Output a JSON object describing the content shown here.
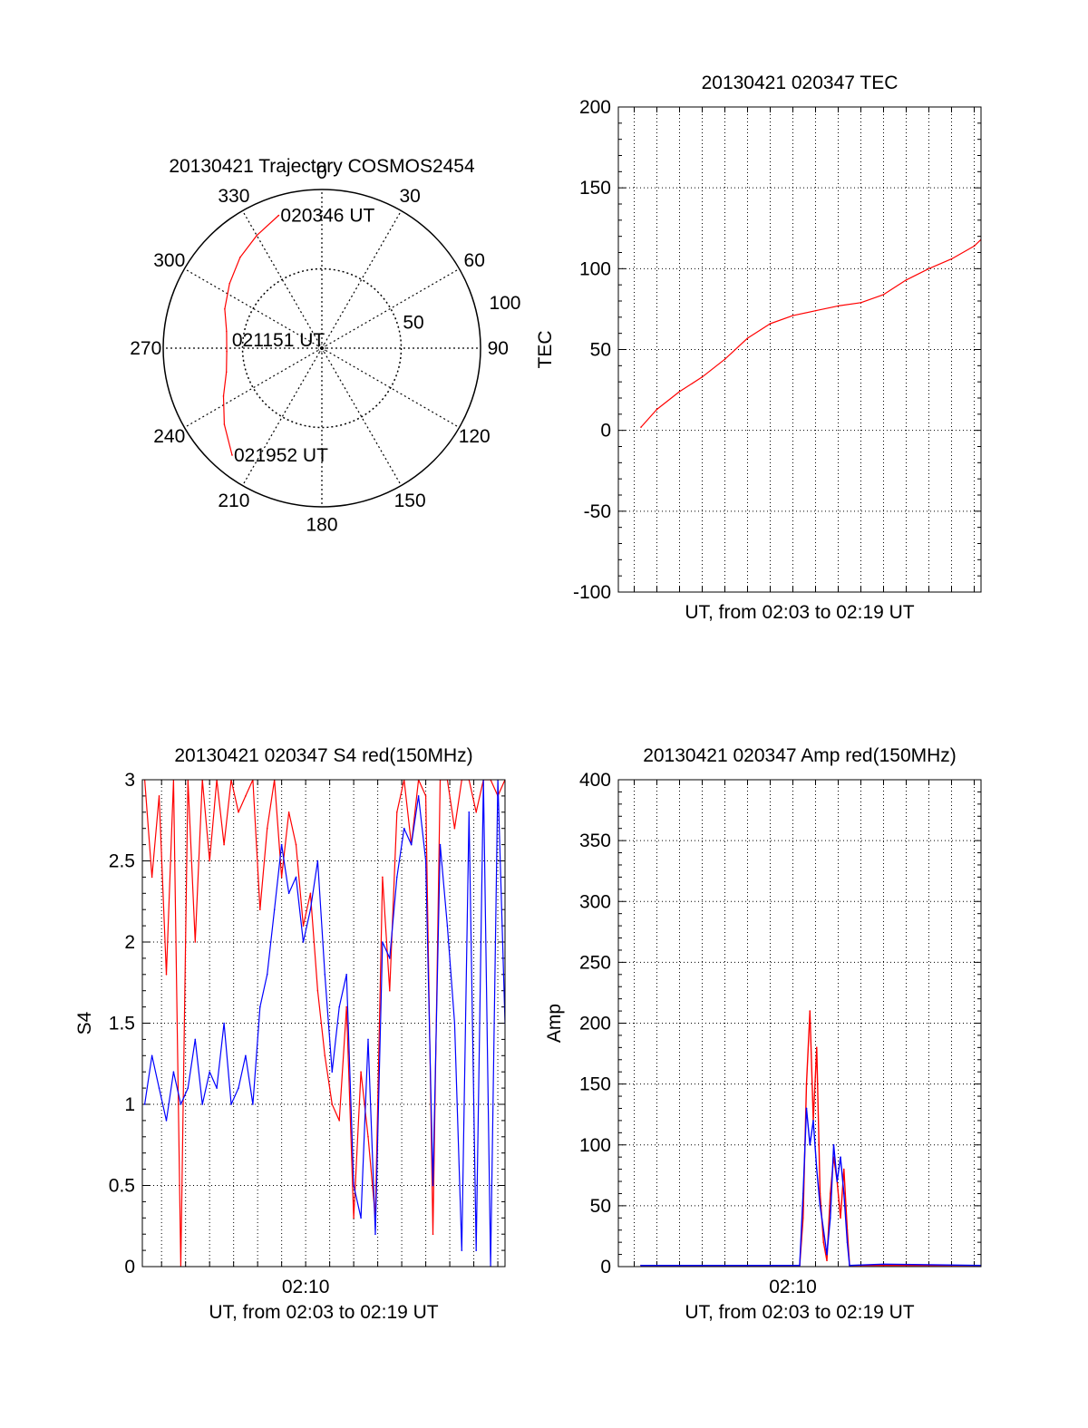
{
  "colors": {
    "series_red": "#ff0000",
    "series_blue": "#0000ff",
    "axis": "#000000",
    "grid": "#000000"
  },
  "chart_data": [
    {
      "id": "trajectory",
      "type": "polar",
      "title": "20130421 Trajectory COSMOS2454",
      "angle_labels": [
        "0",
        "30",
        "60",
        "90",
        "120",
        "150",
        "180",
        "210",
        "240",
        "270",
        "300",
        "330"
      ],
      "angle_values": [
        0,
        30,
        60,
        90,
        120,
        150,
        180,
        210,
        240,
        270,
        300,
        330
      ],
      "radial_max": 100,
      "radial_ticks": [
        50,
        100
      ],
      "radial_tick_labels": [
        "50",
        "100"
      ],
      "grid": true,
      "track": {
        "color": "red",
        "points": [
          {
            "az": 342,
            "r": 88
          },
          {
            "az": 330,
            "r": 82
          },
          {
            "az": 318,
            "r": 77
          },
          {
            "az": 305,
            "r": 71
          },
          {
            "az": 292,
            "r": 66
          },
          {
            "az": 280,
            "r": 61
          },
          {
            "az": 268,
            "r": 60
          },
          {
            "az": 256,
            "r": 62
          },
          {
            "az": 244,
            "r": 69
          },
          {
            "az": 232,
            "r": 78
          },
          {
            "az": 220,
            "r": 88
          }
        ]
      },
      "annotations": [
        {
          "text": "020346 UT",
          "az": 342,
          "r": 88
        },
        {
          "text": "021151 UT",
          "az": 275,
          "r": 58
        },
        {
          "text": "021952 UT",
          "az": 220,
          "r": 88
        }
      ]
    },
    {
      "id": "tec",
      "type": "line",
      "title": "20130421 020347 TEC",
      "xlabel": "UT, from 02:03 to 02:19 UT",
      "ylabel": "TEC",
      "x_unit": "minutes",
      "xlim": [
        2.3,
        18.3
      ],
      "ylim": [
        -100,
        200
      ],
      "yticks": [
        -100,
        -50,
        0,
        50,
        100,
        150,
        200
      ],
      "x_tick_labels": [],
      "grid": true,
      "series": [
        {
          "color": "red",
          "x": [
            3.3,
            4,
            5,
            6,
            7,
            8,
            9,
            10,
            11,
            12,
            13,
            14,
            15,
            16,
            17,
            18,
            18.3
          ],
          "y": [
            2,
            13,
            24,
            33,
            44,
            57,
            66,
            71,
            74,
            77,
            79,
            84,
            93,
            100,
            106,
            114,
            118
          ]
        }
      ]
    },
    {
      "id": "s4",
      "type": "line",
      "title": "20130421 020347 S4 red(150MHz)",
      "xlabel": "UT, from 02:03 to 02:19 UT",
      "ylabel": "S4",
      "x_unit": "minutes",
      "xlim": [
        3.2,
        18.3
      ],
      "ylim": [
        0,
        3
      ],
      "yticks": [
        0,
        0.5,
        1,
        1.5,
        2,
        2.5,
        3
      ],
      "ytick_labels": [
        "0",
        "0.5",
        "1",
        "1.5",
        "2",
        "2.5",
        "3"
      ],
      "x_ticks": [
        10
      ],
      "x_tick_labels": [
        "02:10"
      ],
      "grid": true,
      "series": [
        {
          "color": "red",
          "x": [
            3.3,
            3.6,
            3.9,
            4.2,
            4.5,
            4.8,
            5.1,
            5.4,
            5.7,
            6.0,
            6.3,
            6.6,
            6.9,
            7.2,
            7.5,
            7.8,
            8.1,
            8.4,
            8.7,
            9.0,
            9.3,
            9.6,
            9.9,
            10.2,
            10.5,
            10.8,
            11.1,
            11.4,
            11.7,
            12.0,
            12.3,
            12.6,
            12.9,
            13.2,
            13.5,
            13.8,
            14.1,
            14.4,
            14.7,
            15.0,
            15.3,
            15.6,
            15.9,
            16.2,
            16.5,
            16.8,
            17.1,
            17.4,
            17.7,
            18.0,
            18.3
          ],
          "y": [
            3.0,
            2.4,
            2.9,
            1.8,
            3.0,
            0.0,
            3.0,
            2.0,
            3.0,
            2.5,
            3.0,
            2.6,
            3.0,
            2.8,
            2.9,
            3.0,
            2.2,
            2.7,
            3.0,
            2.4,
            2.8,
            2.6,
            2.1,
            2.3,
            1.7,
            1.3,
            1.0,
            0.9,
            1.6,
            0.3,
            1.2,
            0.8,
            0.3,
            2.4,
            1.7,
            2.8,
            3.0,
            2.6,
            3.0,
            2.9,
            0.2,
            3.0,
            3.0,
            2.7,
            3.0,
            3.0,
            2.8,
            3.0,
            3.0,
            2.9,
            3.0
          ]
        },
        {
          "color": "blue",
          "x": [
            3.3,
            3.6,
            3.9,
            4.2,
            4.5,
            4.8,
            5.1,
            5.4,
            5.7,
            6.0,
            6.3,
            6.6,
            6.9,
            7.2,
            7.5,
            7.8,
            8.1,
            8.4,
            8.7,
            9.0,
            9.3,
            9.6,
            9.9,
            10.2,
            10.5,
            10.8,
            11.1,
            11.4,
            11.7,
            12.0,
            12.3,
            12.6,
            12.9,
            13.2,
            13.5,
            13.8,
            14.1,
            14.4,
            14.7,
            15.0,
            15.3,
            15.6,
            15.9,
            16.2,
            16.5,
            16.8,
            17.1,
            17.4,
            17.7,
            18.0,
            18.3
          ],
          "y": [
            1.0,
            1.3,
            1.1,
            0.9,
            1.2,
            1.0,
            1.1,
            1.4,
            1.0,
            1.2,
            1.1,
            1.5,
            1.0,
            1.1,
            1.3,
            1.0,
            1.6,
            1.8,
            2.2,
            2.6,
            2.3,
            2.4,
            2.0,
            2.2,
            2.5,
            1.8,
            1.2,
            1.6,
            1.8,
            0.5,
            0.3,
            1.4,
            0.2,
            2.0,
            1.9,
            2.4,
            2.7,
            2.6,
            2.9,
            2.5,
            0.5,
            2.6,
            2.1,
            1.5,
            0.1,
            2.8,
            0.1,
            3.0,
            0.0,
            3.0,
            1.5
          ]
        }
      ]
    },
    {
      "id": "amp",
      "type": "line",
      "title": "20130421 020347 Amp red(150MHz)",
      "xlabel": "UT, from 02:03 to 02:19 UT",
      "ylabel": "Amp",
      "x_unit": "minutes",
      "xlim": [
        2.3,
        18.3
      ],
      "ylim": [
        0,
        400
      ],
      "yticks": [
        0,
        50,
        100,
        150,
        200,
        250,
        300,
        350,
        400
      ],
      "x_ticks": [
        10
      ],
      "x_tick_labels": [
        "02:10"
      ],
      "grid": true,
      "series": [
        {
          "color": "red",
          "x": [
            3.3,
            8.0,
            10.3,
            10.45,
            10.6,
            10.75,
            10.9,
            11.05,
            11.2,
            11.35,
            11.5,
            11.65,
            11.8,
            11.95,
            12.1,
            12.25,
            12.4,
            12.5,
            14.0,
            18.3
          ],
          "y": [
            1,
            1,
            1,
            40,
            150,
            210,
            120,
            180,
            60,
            20,
            5,
            60,
            90,
            70,
            40,
            80,
            30,
            1,
            1,
            1
          ]
        },
        {
          "color": "blue",
          "x": [
            3.3,
            8.0,
            10.3,
            10.45,
            10.6,
            10.75,
            10.9,
            11.05,
            11.2,
            11.35,
            11.5,
            11.65,
            11.8,
            11.95,
            12.1,
            12.25,
            12.4,
            12.5,
            14.0,
            18.3
          ],
          "y": [
            1,
            1,
            1,
            60,
            130,
            100,
            120,
            80,
            50,
            30,
            10,
            40,
            100,
            70,
            90,
            60,
            20,
            1,
            2,
            1
          ]
        }
      ]
    }
  ]
}
